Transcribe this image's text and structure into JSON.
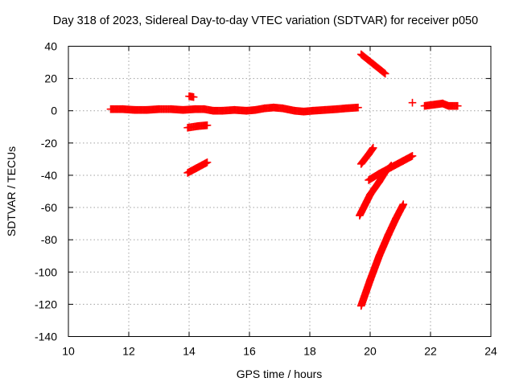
{
  "chart_data": {
    "type": "scatter",
    "title": "Day 318 of 2023, Sidereal Day-to-day VTEC variation (SDTVAR) for receiver p050",
    "xlabel": "GPS time / hours",
    "ylabel": "SDTVAR / TECUs",
    "xlim": [
      10,
      24
    ],
    "ylim": [
      -140,
      40
    ],
    "xticks": [
      10,
      12,
      14,
      16,
      18,
      20,
      22,
      24
    ],
    "yticks": [
      40,
      20,
      0,
      -20,
      -40,
      -60,
      -80,
      -100,
      -120,
      -140
    ],
    "grid": true,
    "marker": "plus",
    "color": "#ff0000",
    "series": [
      {
        "name": "main-arc",
        "points": [
          [
            11.4,
            1
          ],
          [
            11.8,
            1
          ],
          [
            12.2,
            0.5
          ],
          [
            12.6,
            0.5
          ],
          [
            13.0,
            1
          ],
          [
            13.4,
            1
          ],
          [
            13.8,
            0.5
          ],
          [
            14.2,
            1
          ],
          [
            14.5,
            1
          ],
          [
            14.8,
            0
          ],
          [
            15.1,
            0
          ],
          [
            15.5,
            0.5
          ],
          [
            15.9,
            0
          ],
          [
            16.2,
            0.5
          ],
          [
            16.5,
            1.5
          ],
          [
            16.8,
            2
          ],
          [
            17.1,
            1.5
          ],
          [
            17.5,
            0
          ],
          [
            17.8,
            -0.5
          ],
          [
            18.1,
            0
          ],
          [
            18.5,
            0.5
          ],
          [
            18.9,
            1
          ],
          [
            19.2,
            1.5
          ],
          [
            19.6,
            2
          ]
        ]
      },
      {
        "name": "arc-14-upper",
        "points": [
          [
            14.0,
            9
          ],
          [
            14.15,
            8.5
          ]
        ]
      },
      {
        "name": "arc-14-mid",
        "points": [
          [
            13.95,
            -10.5
          ],
          [
            14.3,
            -9.5
          ],
          [
            14.6,
            -9
          ]
        ]
      },
      {
        "name": "arc-14-low",
        "points": [
          [
            13.95,
            -38.5
          ],
          [
            14.25,
            -35.5
          ],
          [
            14.6,
            -32
          ]
        ]
      },
      {
        "name": "arc-20-top",
        "points": [
          [
            19.7,
            35
          ],
          [
            20.1,
            29
          ],
          [
            20.5,
            23
          ]
        ]
      },
      {
        "name": "arc-20-a",
        "points": [
          [
            19.7,
            -33
          ],
          [
            19.95,
            -27
          ],
          [
            20.1,
            -23
          ]
        ]
      },
      {
        "name": "arc-20-b",
        "points": [
          [
            19.65,
            -65
          ],
          [
            20.0,
            -52
          ],
          [
            20.3,
            -44
          ],
          [
            20.5,
            -38
          ],
          [
            20.7,
            -34
          ]
        ]
      },
      {
        "name": "arc-20-c",
        "points": [
          [
            19.95,
            -43
          ],
          [
            20.3,
            -39
          ],
          [
            20.7,
            -35
          ],
          [
            21.1,
            -31
          ],
          [
            21.4,
            -28
          ]
        ]
      },
      {
        "name": "arc-20-d",
        "points": [
          [
            19.7,
            -121
          ],
          [
            20.0,
            -105
          ],
          [
            20.3,
            -90
          ],
          [
            20.6,
            -77
          ],
          [
            20.85,
            -67
          ],
          [
            21.1,
            -58
          ]
        ]
      },
      {
        "name": "arc-21-5",
        "points": [
          [
            21.4,
            5
          ]
        ]
      },
      {
        "name": "arc-22",
        "points": [
          [
            21.8,
            3
          ],
          [
            22.2,
            4
          ],
          [
            22.4,
            4.5
          ],
          [
            22.6,
            3
          ],
          [
            22.9,
            3
          ]
        ]
      }
    ]
  }
}
